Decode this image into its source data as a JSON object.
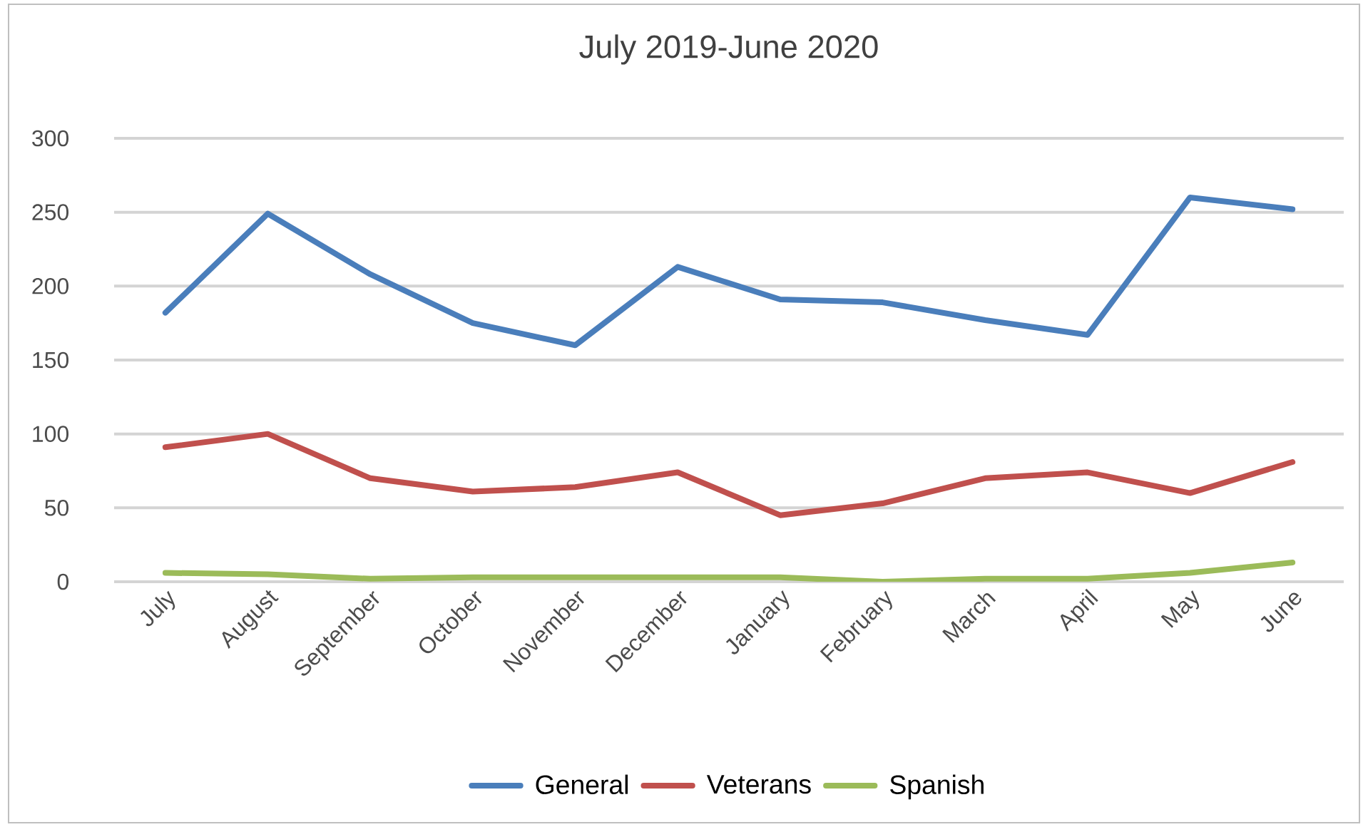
{
  "chart_data": {
    "type": "line",
    "title": "July 2019-June 2020",
    "categories": [
      "July",
      "August",
      "September",
      "October",
      "November",
      "December",
      "January",
      "February",
      "March",
      "April",
      "May",
      "June"
    ],
    "series": [
      {
        "name": "General",
        "color": "#4a7ebb",
        "values": [
          182,
          249,
          208,
          175,
          160,
          213,
          191,
          189,
          177,
          167,
          260,
          252
        ]
      },
      {
        "name": "Veterans",
        "color": "#c0504d",
        "values": [
          91,
          100,
          70,
          61,
          64,
          74,
          45,
          53,
          70,
          74,
          60,
          81
        ]
      },
      {
        "name": "Spanish",
        "color": "#9bbb59",
        "values": [
          6,
          5,
          2,
          3,
          3,
          3,
          3,
          0,
          2,
          2,
          6,
          13
        ]
      }
    ],
    "ylim": [
      0,
      300
    ],
    "yticks": [
      0,
      50,
      100,
      150,
      200,
      250,
      300
    ],
    "grid": "y",
    "legend": "bottom",
    "marker": "none",
    "line_style": "solid"
  }
}
